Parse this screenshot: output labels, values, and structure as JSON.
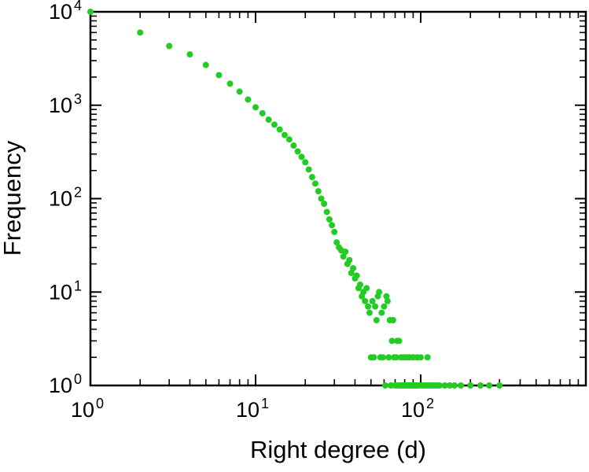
{
  "figure": {
    "background": "#ffffff"
  },
  "chart_data": {
    "type": "scatter",
    "title": "",
    "xlabel": "Right degree (d)",
    "ylabel": "Frequency",
    "x_scale": "log",
    "y_scale": "log",
    "xlim": [
      1,
      1000
    ],
    "ylim": [
      1,
      10000
    ],
    "x_tick_exponents": [
      0,
      1,
      2
    ],
    "y_tick_exponents": [
      0,
      1,
      2,
      3,
      4
    ],
    "tick_label_base": "10",
    "grid": false,
    "legend": false,
    "marker": {
      "shape": "circle",
      "color": "#22cc22",
      "radius": 4
    },
    "points": [
      [
        1,
        10000
      ],
      [
        2,
        6000
      ],
      [
        3,
        4300
      ],
      [
        4,
        3500
      ],
      [
        5,
        2700
      ],
      [
        6,
        2100
      ],
      [
        7,
        1700
      ],
      [
        8,
        1400
      ],
      [
        9,
        1150
      ],
      [
        10,
        950
      ],
      [
        11,
        820
      ],
      [
        12,
        700
      ],
      [
        13,
        620
      ],
      [
        14,
        550
      ],
      [
        15,
        480
      ],
      [
        16,
        430
      ],
      [
        17,
        370
      ],
      [
        18,
        320
      ],
      [
        19,
        280
      ],
      [
        20,
        245
      ],
      [
        21,
        205
      ],
      [
        22,
        170
      ],
      [
        23,
        145
      ],
      [
        24,
        120
      ],
      [
        25,
        100
      ],
      [
        26,
        88
      ],
      [
        27,
        72
      ],
      [
        28,
        60
      ],
      [
        29,
        52
      ],
      [
        30,
        44
      ],
      [
        31,
        34
      ],
      [
        32,
        30
      ],
      [
        33,
        28
      ],
      [
        34,
        24
      ],
      [
        35,
        27
      ],
      [
        36,
        20
      ],
      [
        37,
        22
      ],
      [
        38,
        16
      ],
      [
        39,
        18
      ],
      [
        40,
        14
      ],
      [
        41,
        15
      ],
      [
        42,
        11
      ],
      [
        43,
        12
      ],
      [
        44,
        9
      ],
      [
        45,
        10
      ],
      [
        46,
        8
      ],
      [
        47,
        11
      ],
      [
        48,
        7
      ],
      [
        49,
        6
      ],
      [
        50,
        2
      ],
      [
        51,
        8
      ],
      [
        52,
        2
      ],
      [
        53,
        7
      ],
      [
        54,
        5
      ],
      [
        55,
        9
      ],
      [
        56,
        10
      ],
      [
        57,
        2
      ],
      [
        58,
        6
      ],
      [
        59,
        2
      ],
      [
        60,
        7
      ],
      [
        61,
        1
      ],
      [
        62,
        9
      ],
      [
        63,
        8
      ],
      [
        64,
        2
      ],
      [
        65,
        5
      ],
      [
        66,
        1
      ],
      [
        67,
        3
      ],
      [
        68,
        5
      ],
      [
        69,
        2
      ],
      [
        70,
        1
      ],
      [
        71,
        2
      ],
      [
        72,
        3
      ],
      [
        73,
        1
      ],
      [
        74,
        3
      ],
      [
        75,
        1
      ],
      [
        76,
        2
      ],
      [
        77,
        1
      ],
      [
        78,
        2
      ],
      [
        79,
        1
      ],
      [
        80,
        2
      ],
      [
        81,
        1
      ],
      [
        82,
        1
      ],
      [
        83,
        2
      ],
      [
        84,
        1
      ],
      [
        85,
        1
      ],
      [
        86,
        2
      ],
      [
        87,
        1
      ],
      [
        88,
        1
      ],
      [
        89,
        1
      ],
      [
        90,
        2
      ],
      [
        91,
        1
      ],
      [
        92,
        1
      ],
      [
        93,
        1
      ],
      [
        94,
        1
      ],
      [
        95,
        2
      ],
      [
        96,
        1
      ],
      [
        98,
        1
      ],
      [
        100,
        2
      ],
      [
        102,
        1
      ],
      [
        104,
        1
      ],
      [
        106,
        1
      ],
      [
        108,
        1
      ],
      [
        110,
        2
      ],
      [
        112,
        1
      ],
      [
        115,
        1
      ],
      [
        118,
        1
      ],
      [
        120,
        1
      ],
      [
        125,
        1
      ],
      [
        130,
        1
      ],
      [
        140,
        1
      ],
      [
        150,
        1
      ],
      [
        160,
        1
      ],
      [
        175,
        1
      ],
      [
        200,
        1
      ],
      [
        230,
        1
      ],
      [
        260,
        1
      ],
      [
        300,
        1
      ]
    ]
  }
}
